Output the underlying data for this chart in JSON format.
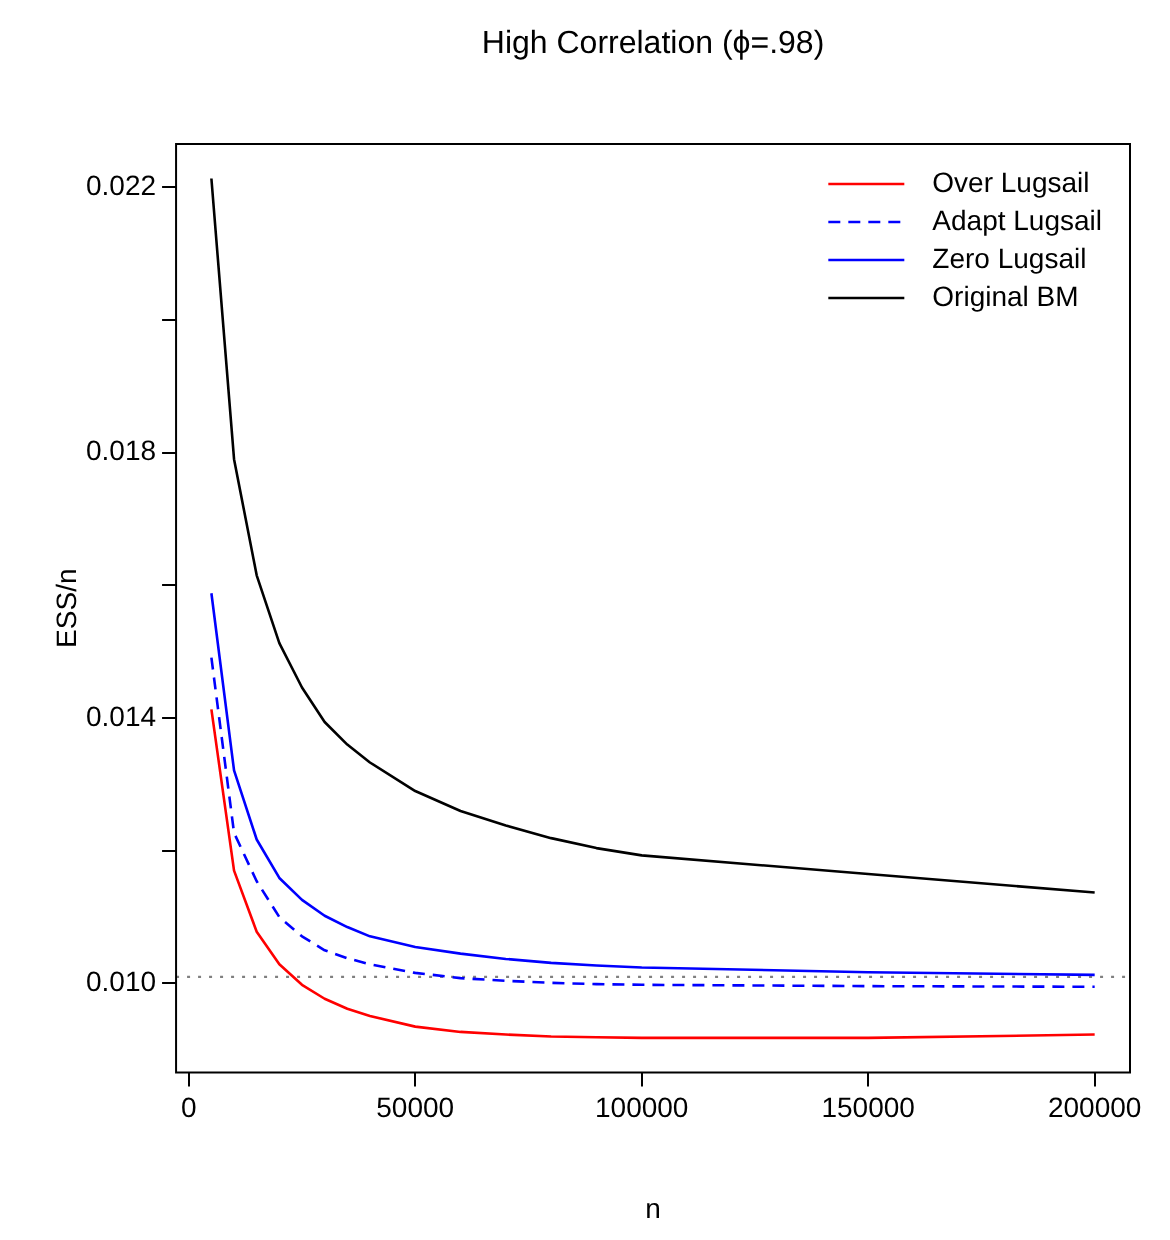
{
  "chart_data": {
    "type": "line",
    "title": "High Correlation (ϕ=.98)",
    "xlabel": "n",
    "ylabel": "ESS/n",
    "x": [
      5000,
      10000,
      15000,
      20000,
      25000,
      30000,
      35000,
      40000,
      50000,
      60000,
      70000,
      80000,
      90000,
      100000,
      150000,
      200000
    ],
    "series": [
      {
        "name": "Over Lugsail",
        "color": "#ff0000",
        "line_style": "solid",
        "values": [
          0.01413,
          0.0117,
          0.01078,
          0.01029,
          0.00998,
          0.00977,
          0.00962,
          0.00951,
          0.00935,
          0.00927,
          0.00923,
          0.0092,
          0.00919,
          0.00918,
          0.00918,
          0.00923
        ]
      },
      {
        "name": "Adapt Lugsail",
        "color": "#0000ff",
        "line_style": "dashed",
        "values": [
          0.01491,
          0.01227,
          0.01154,
          0.011,
          0.01071,
          0.0105,
          0.01038,
          0.01029,
          0.01016,
          0.01008,
          0.01004,
          0.01001,
          0.00999,
          0.00998,
          0.00996,
          0.00995
        ]
      },
      {
        "name": "Zero Lugsail",
        "color": "#0000ff",
        "line_style": "solid",
        "values": [
          0.01588,
          0.01321,
          0.01217,
          0.01159,
          0.01126,
          0.01102,
          0.01085,
          0.01071,
          0.01055,
          0.01045,
          0.01037,
          0.01031,
          0.01027,
          0.01024,
          0.01017,
          0.01013
        ]
      },
      {
        "name": "Original BM",
        "color": "#000000",
        "line_style": "solid",
        "values": [
          0.02213,
          0.0179,
          0.01615,
          0.01513,
          0.01446,
          0.01394,
          0.0136,
          0.01333,
          0.0129,
          0.0126,
          0.01238,
          0.01219,
          0.01204,
          0.01193,
          0.01165,
          0.01137
        ]
      }
    ],
    "xlim": [
      -2800,
      207800
    ],
    "xticks": [
      0,
      50000,
      100000,
      150000,
      200000
    ],
    "ylim": [
      0.00866,
      0.02265
    ],
    "yticks": [
      {
        "value": 0.01,
        "label": "0.010"
      },
      {
        "value": 0.012,
        "label": null
      },
      {
        "value": 0.014,
        "label": "0.014"
      },
      {
        "value": 0.016,
        "label": null
      },
      {
        "value": 0.018,
        "label": "0.018"
      },
      {
        "value": 0.02,
        "label": null
      },
      {
        "value": 0.022,
        "label": "0.022"
      }
    ],
    "ref_lines": [
      {
        "axis": "y",
        "value": 0.0101,
        "color": "#808080",
        "line_style": "dotted"
      }
    ],
    "legend": "top right",
    "grid": false,
    "marker": "none"
  }
}
